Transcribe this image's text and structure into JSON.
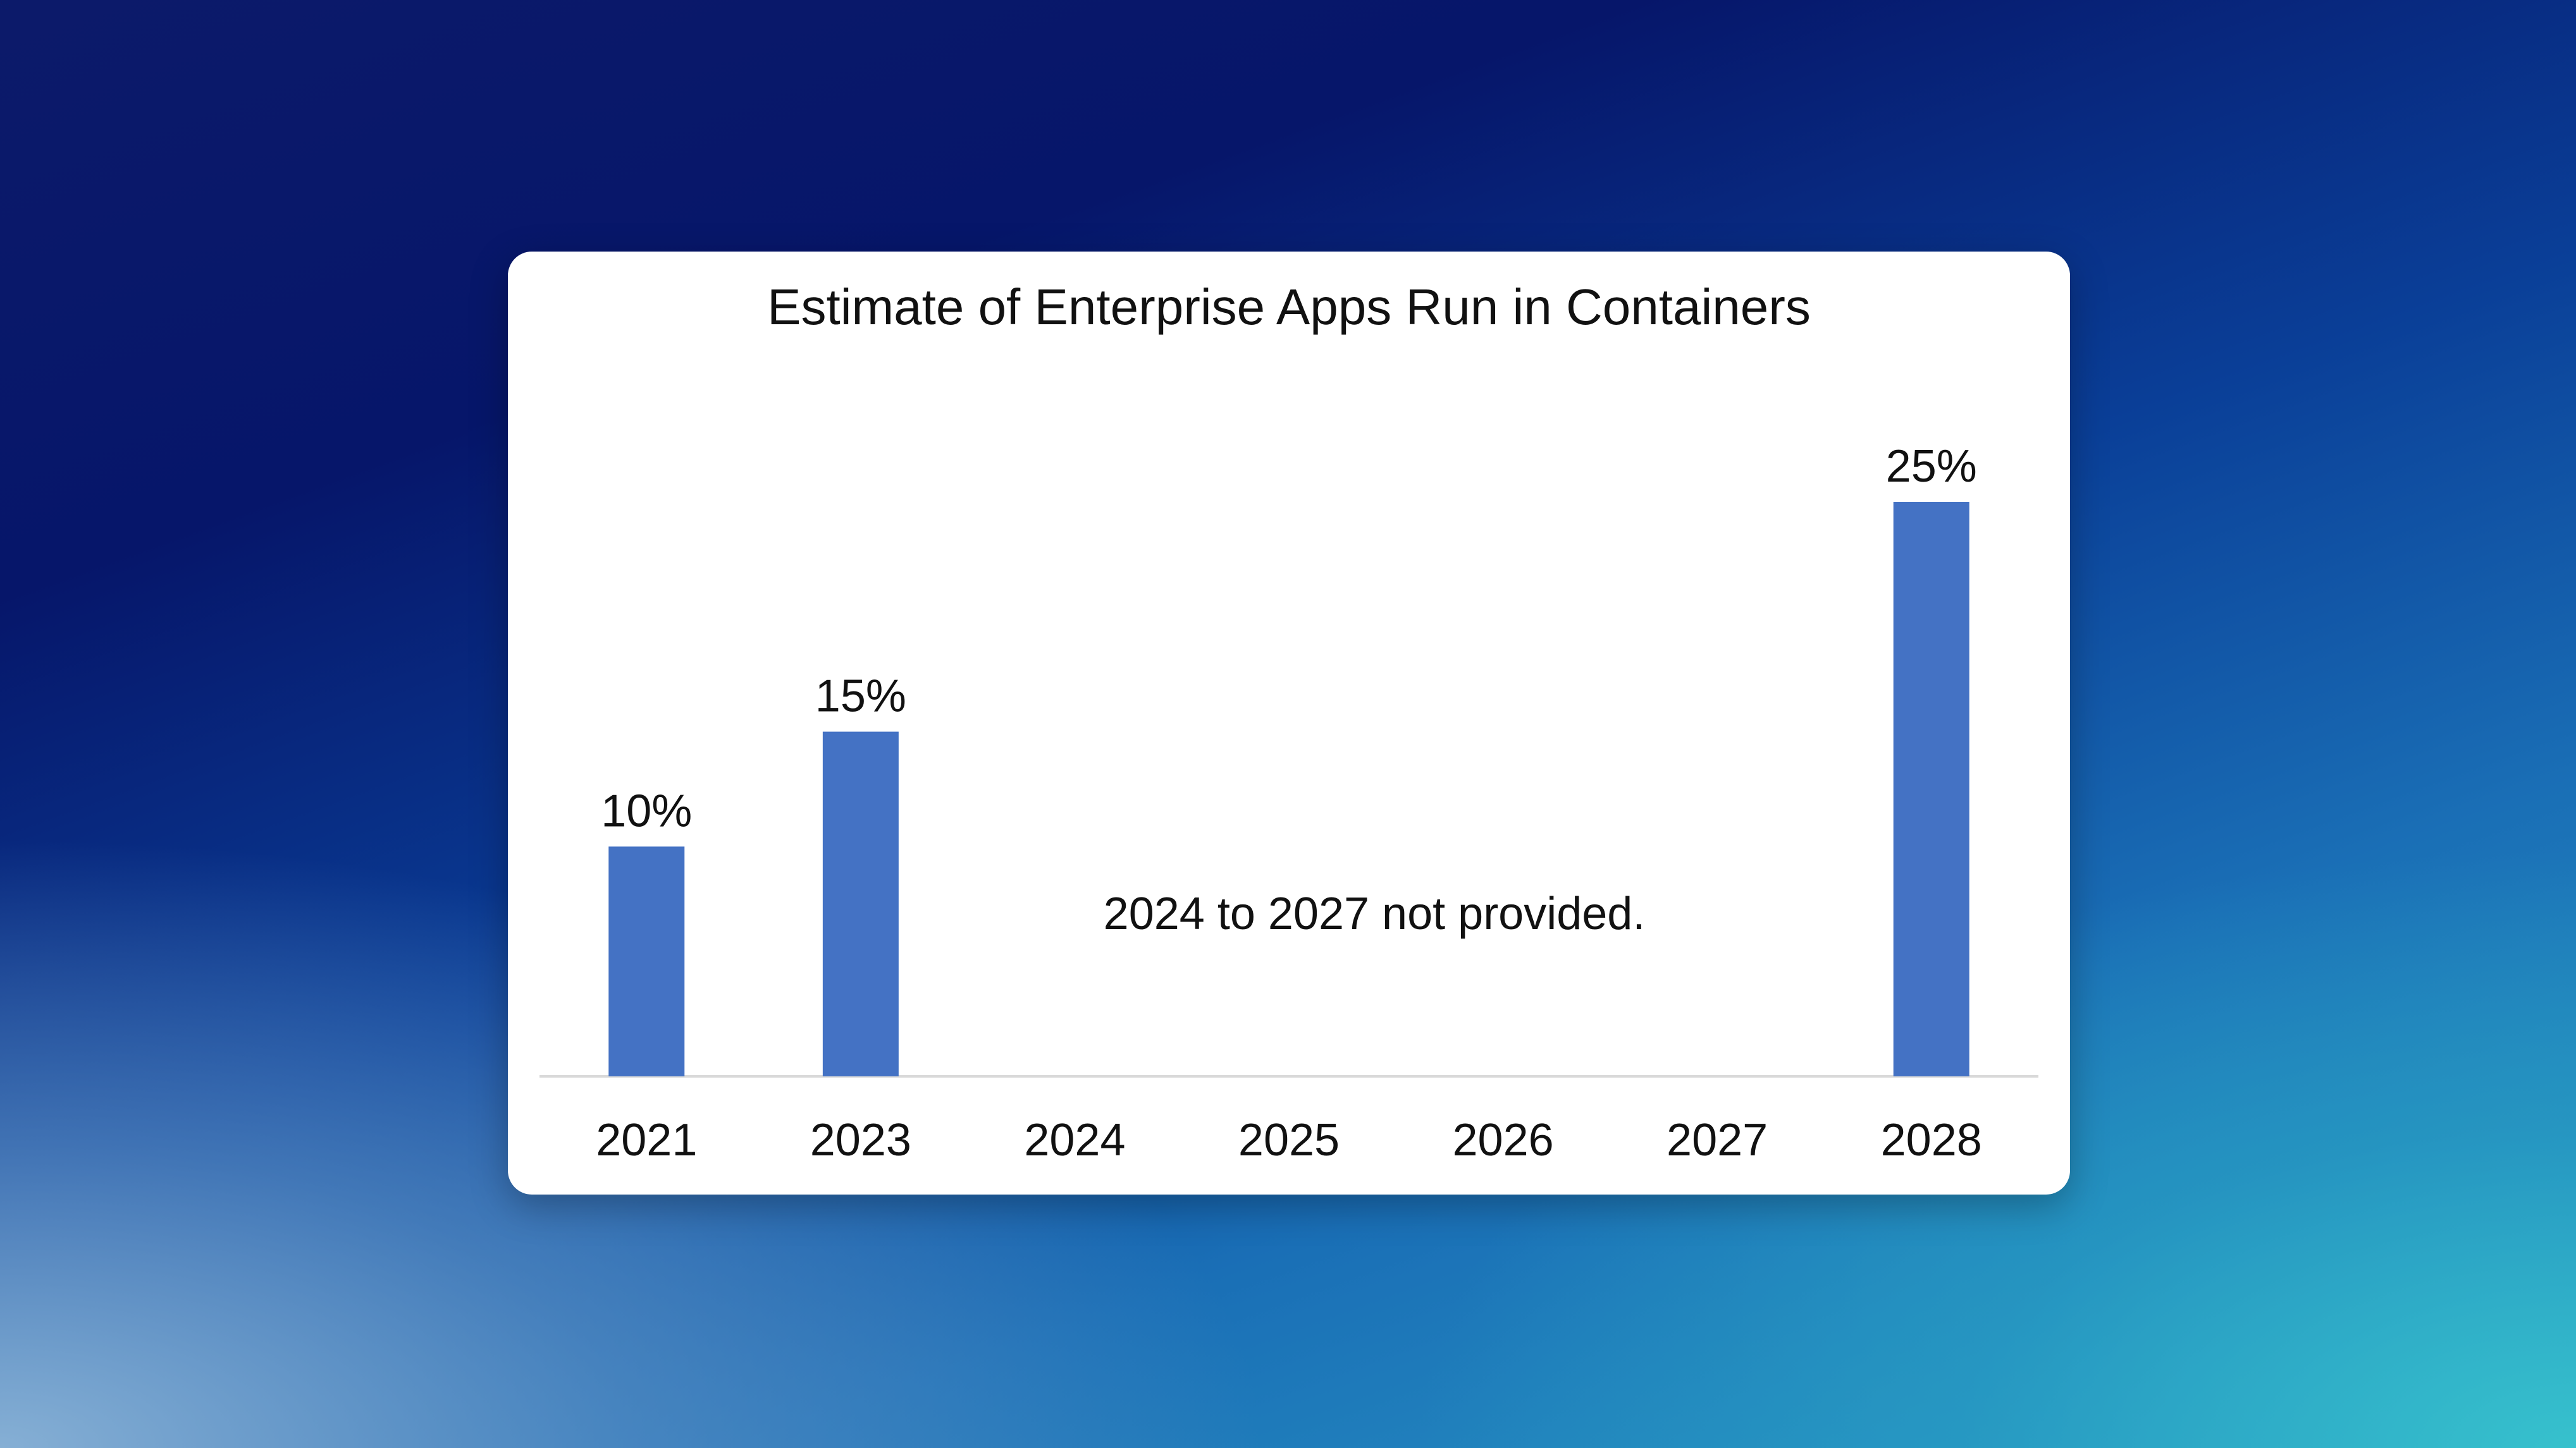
{
  "chart_data": {
    "type": "bar",
    "title": "Estimate of Enterprise Apps Run in Containers",
    "categories": [
      "2021",
      "2023",
      "2024",
      "2025",
      "2026",
      "2027",
      "2028"
    ],
    "values": [
      10,
      15,
      null,
      null,
      null,
      null,
      25
    ],
    "data_labels": [
      "10%",
      "15%",
      "",
      "",
      "",
      "",
      "25%"
    ],
    "annotation": "2024 to 2027 not provided.",
    "ylim": [
      0,
      25
    ],
    "grid": false,
    "bar_color": "#4472c4"
  }
}
